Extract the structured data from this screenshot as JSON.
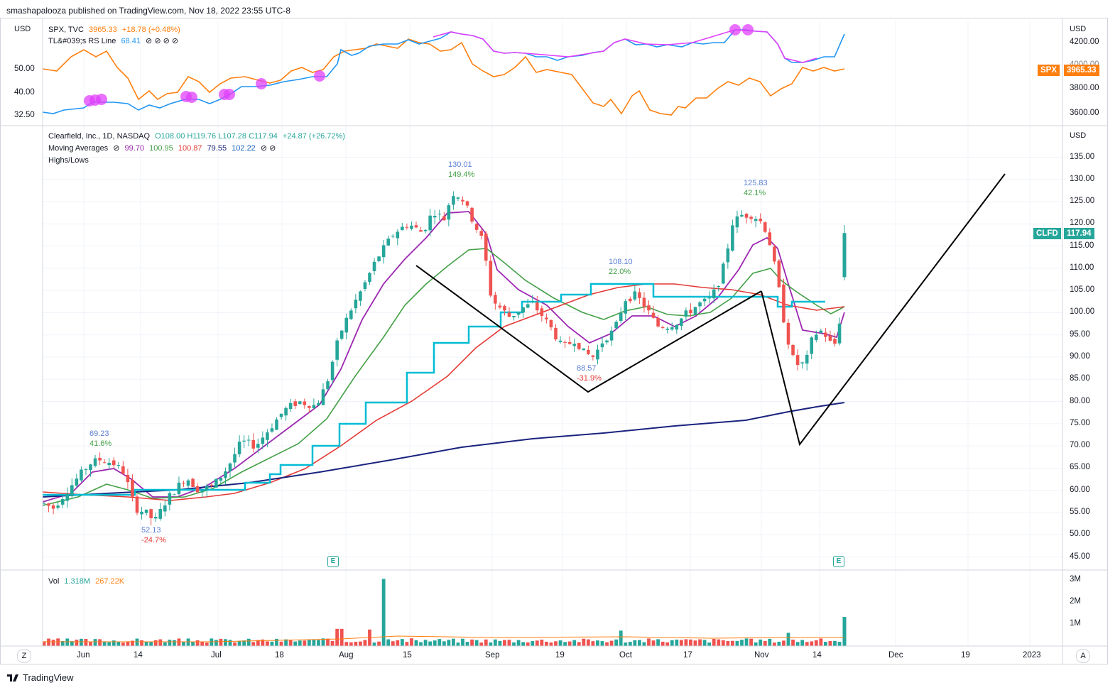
{
  "header": {
    "published_by": "smashapalooza published on TradingView.com, Nov 18, 2022 23:55 UTC-8"
  },
  "footer": {
    "brand": "TradingView"
  },
  "top_pane": {
    "left_currency": "USD",
    "right_currency": "USD",
    "symbol_line": {
      "name": "SPX, TVC",
      "value": "3965.33",
      "change": "+18.78 (+0.48%)"
    },
    "rs_line": {
      "name": "TL&#039;s RS Line",
      "value": "68.41",
      "flags": "⊘ ⊘ ⊘ ⊘"
    },
    "left_ticks": [
      "50.00",
      "40.00",
      "32.50"
    ],
    "right_ticks": [
      "4200.00",
      "4000.00",
      "3800.00",
      "3600.00"
    ],
    "price_tag": {
      "symbol": "SPX",
      "value": "3965.33"
    }
  },
  "main_pane": {
    "right_currency": "USD",
    "title_line": {
      "name": "Clearfield, Inc., 1D, NASDAQ",
      "o": "O108.00",
      "h": "H119.76",
      "l": "L107.28",
      "c": "C117.94",
      "change": "+24.87 (+26.72%)"
    },
    "ma_line": {
      "name": "Moving Averages",
      "flag": "⊘",
      "v1": "99.70",
      "v2": "100.95",
      "v3": "100.87",
      "v4": "79.55",
      "v5": "102.22",
      "flags": "⊘ ⊘"
    },
    "highs_lows": "Highs/Lows",
    "price_tag": {
      "symbol": "CLFD",
      "value": "117.94"
    },
    "earnings_badge": "E"
  },
  "volume_pane": {
    "label": "Vol",
    "value": "1.318M",
    "ma": "267.22K",
    "ticks": [
      "3M",
      "2M",
      "1M"
    ]
  },
  "time_axis": {
    "labels": [
      "Jun",
      "14",
      "Jul",
      "18",
      "Aug",
      "15",
      "Sep",
      "19",
      "Oct",
      "17",
      "Nov",
      "14",
      "Dec",
      "19",
      "2023"
    ],
    "left_button": "Z",
    "right_button": "A"
  },
  "colors": {
    "up": "#26a69a",
    "down": "#ef5350",
    "spx": "#ff7f0e",
    "rs_blue": "#2196f3",
    "rs_pink": "#e040fb",
    "ma1": "#9c27b0",
    "ma2": "#43a047",
    "ma3": "#e53935",
    "ma4": "#1a237e",
    "ma5": "#00bcd4"
  },
  "chart_data": {
    "type": "candlestick",
    "symbol": "CLFD",
    "price_ylim": [
      42,
      138
    ],
    "price_ticks": [
      135,
      130,
      125,
      120,
      115,
      110,
      105,
      100,
      95,
      90,
      85,
      80,
      75,
      70,
      65,
      60,
      55,
      50,
      45
    ],
    "annotations": [
      {
        "label": "69.23",
        "pct": "41.6%",
        "kind": "high",
        "x": "2022-06-07",
        "y": 69.23
      },
      {
        "label": "52.13",
        "pct": "-24.7%",
        "kind": "low",
        "x": "2022-06-16",
        "y": 52.13
      },
      {
        "label": "130.01",
        "pct": "149.4%",
        "kind": "high",
        "x": "2022-08-26",
        "y": 130.01
      },
      {
        "label": "88.57",
        "pct": "-31.9%",
        "kind": "low",
        "x": "2022-09-23",
        "y": 88.57
      },
      {
        "label": "108.10",
        "pct": "22.0%",
        "kind": "high",
        "x": "2022-09-30",
        "y": 108.1
      },
      {
        "label": "125.83",
        "pct": "42.1%",
        "kind": "high",
        "x": "2022-11-01",
        "y": 125.83
      }
    ],
    "last_close": 117.94
  }
}
